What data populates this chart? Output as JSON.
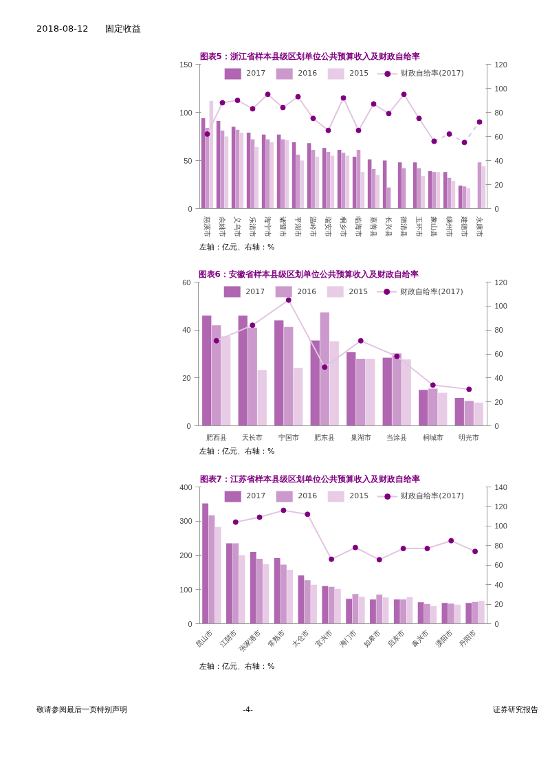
{
  "chart_data": [
    {
      "type": "bar",
      "title": "图表5：浙江省样本县级区划单位公共预算收入及财政自给率",
      "categories": [
        "慈溪市",
        "余姚市",
        "义乌市",
        "乐清市",
        "海宁市",
        "诸暨市",
        "平湖市",
        "温岭市",
        "瑞安市",
        "桐乡市",
        "临海市",
        "嘉善县",
        "长兴县",
        "德清县",
        "玉环市",
        "象山县",
        "嵊州市",
        "建德市",
        "永康市"
      ],
      "series": [
        {
          "name": "2017",
          "color": "#b066b0",
          "values": [
            94,
            91,
            85,
            79,
            77,
            77,
            69,
            68,
            63,
            61,
            54,
            51,
            50,
            48,
            48,
            39,
            38,
            24,
            null
          ]
        },
        {
          "name": "2016",
          "color": "#cc99cc",
          "values": [
            84,
            81,
            82,
            72,
            72,
            72,
            56,
            61,
            59,
            58,
            61,
            41,
            22,
            42,
            42,
            38,
            32,
            23,
            48
          ]
        },
        {
          "name": "2015",
          "color": "#e8cce6",
          "values": [
            112,
            75,
            79,
            64,
            69,
            71,
            50,
            54,
            55,
            55,
            38,
            35,
            null,
            null,
            34,
            38,
            29,
            21,
            44
          ]
        },
        {
          "name": "财政自给率(2017)",
          "type": "line",
          "axis": "y2",
          "color": "#e2c4e2",
          "line_style": "solid",
          "colors": [
            "#800080",
            "#800080",
            "#800080",
            "#800080",
            "#800080",
            "#800080",
            "#800080",
            "#800080",
            "#800080",
            "#800080",
            "#800080",
            "#800080",
            "#800080",
            "#800080",
            "#800080",
            "#800080",
            null,
            null,
            null
          ],
          "values": [
            62,
            88,
            90,
            83,
            95,
            84,
            93,
            75,
            65,
            92,
            65,
            87,
            79,
            95,
            75,
            56,
            null,
            null,
            null
          ]
        },
        {
          "type": "line",
          "axis": "y2",
          "color": "#e2c4e2",
          "line_style": "dashed",
          "colors": [
            null,
            null,
            null,
            null,
            null,
            null,
            null,
            null,
            null,
            null,
            null,
            null,
            null,
            null,
            null,
            "#800080",
            "#800080",
            "#800080",
            "#800080"
          ],
          "values": [
            null,
            null,
            null,
            null,
            null,
            null,
            null,
            null,
            null,
            null,
            null,
            null,
            null,
            null,
            null,
            56,
            62,
            55,
            72
          ]
        }
      ],
      "ylim": [
        0,
        150
      ],
      "yticks": [
        0,
        50,
        100,
        150
      ],
      "y2lim": [
        0,
        120
      ],
      "y2ticks": [
        0,
        20,
        40,
        60,
        80,
        100,
        120
      ],
      "legend": "top",
      "marker": "circle",
      "annotations": [
        "2018-08-12",
        "固定收益",
        "左轴：亿元、右轴：%"
      ]
    },
    {
      "type": "bar",
      "title": "图表6：安徽省样本县级区划单位公共预算收入及财政自给率",
      "categories": [
        "肥西县",
        "天长市",
        "宁国市",
        "肥东县",
        "巢湖市",
        "当涂县",
        "桐城市",
        "明光市"
      ],
      "series": [
        {
          "name": "2017",
          "color": "#b066b0",
          "values": [
            46,
            46,
            44,
            35.6,
            30.8,
            28.4,
            15,
            11.6
          ]
        },
        {
          "name": "2016",
          "color": "#cc99cc",
          "values": [
            42,
            41,
            41.3,
            47.4,
            28,
            30.2,
            15.5,
            10.4
          ]
        },
        {
          "name": "2015",
          "color": "#e8cce6",
          "values": [
            37.4,
            23.3,
            24.2,
            35.3,
            28,
            27.8,
            13.8,
            9.7
          ]
        },
        {
          "name": "财政自给率(2017)",
          "type": "line",
          "axis": "y2",
          "color": "#e2c4e2",
          "line_style": "solid",
          "colors": [
            "#800080",
            "#800080",
            "#800080",
            "#800080",
            "#800080",
            "#800080",
            "#800080",
            "#800080"
          ],
          "values": [
            71,
            84,
            105,
            49,
            71,
            58,
            34,
            30.5
          ]
        }
      ],
      "ylim": [
        0,
        60
      ],
      "yticks": [
        0,
        20,
        40,
        60
      ],
      "y2lim": [
        0,
        120
      ],
      "y2ticks": [
        0,
        20,
        40,
        60,
        80,
        100,
        120
      ],
      "legend": "top",
      "marker": "circle",
      "annotations": [
        "左轴：亿元、右轴：%"
      ]
    },
    {
      "type": "bar",
      "title": "图表7：江苏省样本县级区划单位公共预算收入及财政自给率",
      "categories": [
        "昆山市",
        "江阴市",
        "张家港市",
        "常熟市",
        "太仓市",
        "宜兴市",
        "海门市",
        "如皋市",
        "启东市",
        "泰兴市",
        "溧阳市",
        "丹阳市"
      ],
      "series": [
        {
          "name": "2017",
          "color": "#b066b0",
          "values": [
            352,
            235,
            210,
            192,
            141,
            110,
            73,
            71,
            71,
            63,
            61,
            61
          ]
        },
        {
          "name": "2016",
          "color": "#cc99cc",
          "values": [
            317,
            235,
            190,
            173,
            127,
            108,
            87,
            85,
            71,
            58,
            59,
            64
          ]
        },
        {
          "name": "2015",
          "color": "#e8cce6",
          "values": [
            283,
            200,
            174,
            158,
            114,
            102,
            79,
            77,
            78,
            52,
            56,
            67
          ]
        },
        {
          "name": "财政自给率(2017)",
          "type": "line",
          "axis": "y2",
          "color": "#e2c4e2",
          "line_style": "solid",
          "colors": [
            null,
            "#800080",
            "#800080",
            "#800080",
            "#800080",
            "#800080",
            "#800080",
            "#800080",
            "#800080",
            "#800080",
            "#800080",
            "#800080"
          ],
          "values": [
            null,
            104,
            109,
            116,
            112,
            66,
            78,
            65.5,
            77,
            77,
            85,
            74
          ]
        }
      ],
      "ylim": [
        0,
        400
      ],
      "yticks": [
        0,
        100,
        200,
        300,
        400
      ],
      "y2lim": [
        0,
        140
      ],
      "y2ticks": [
        0,
        20,
        40,
        60,
        80,
        100,
        120,
        140
      ],
      "legend": "top",
      "marker": "circle",
      "annotations": [
        "左轴：亿元、右轴：%",
        "敬请参阅最后一页特别声明",
        "-4-",
        "证券研究报告"
      ]
    }
  ]
}
